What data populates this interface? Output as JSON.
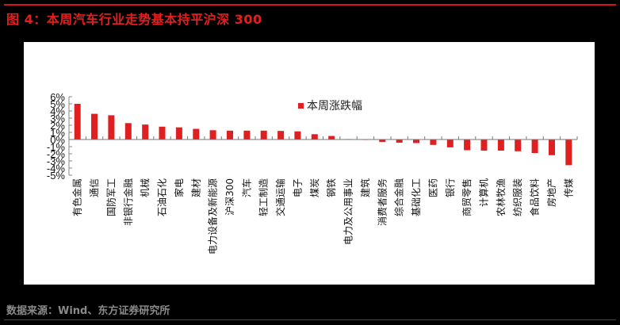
{
  "header": {
    "title": "图 4：本周汽车行业走势基本持平沪深 300"
  },
  "footer": {
    "source": "数据来源：Wind、东方证券研究所"
  },
  "colors": {
    "bar": "#e02020",
    "title": "#e02020",
    "rule": "#d81414"
  },
  "chart_data": {
    "type": "bar",
    "title": "",
    "xlabel": "",
    "ylabel": "",
    "legend": [
      "本周涨跌幅"
    ],
    "legend_position": "top",
    "grid": false,
    "ylim": [
      -5,
      6
    ],
    "yticks": [
      "6%",
      "5%",
      "4%",
      "3%",
      "2%",
      "1%",
      "0%",
      "-1%",
      "-2%",
      "-3%",
      "-4%",
      "-5%"
    ],
    "categories": [
      "有色金属",
      "通信",
      "国防军工",
      "非银行金融",
      "机械",
      "石油石化",
      "家电",
      "建材",
      "电力设备及新能源",
      "沪深300",
      "汽车",
      "轻工制造",
      "交通运输",
      "电子",
      "煤炭",
      "钢铁",
      "电力及公用事业",
      "建筑",
      "消费者服务",
      "综合金融",
      "基础化工",
      "医药",
      "银行",
      "商贸零售",
      "计算机",
      "农林牧渔",
      "纺织服装",
      "食品饮料",
      "房地产",
      "传媒"
    ],
    "series": [
      {
        "name": "本周涨跌幅",
        "values": [
          5.0,
          3.6,
          3.4,
          2.3,
          2.1,
          1.8,
          1.7,
          1.5,
          1.3,
          1.25,
          1.25,
          1.25,
          1.2,
          1.15,
          0.75,
          0.5,
          0.02,
          -0.05,
          -0.35,
          -0.45,
          -0.5,
          -0.75,
          -1.1,
          -1.5,
          -1.55,
          -1.55,
          -1.65,
          -1.9,
          -2.2,
          -3.6
        ]
      }
    ]
  }
}
